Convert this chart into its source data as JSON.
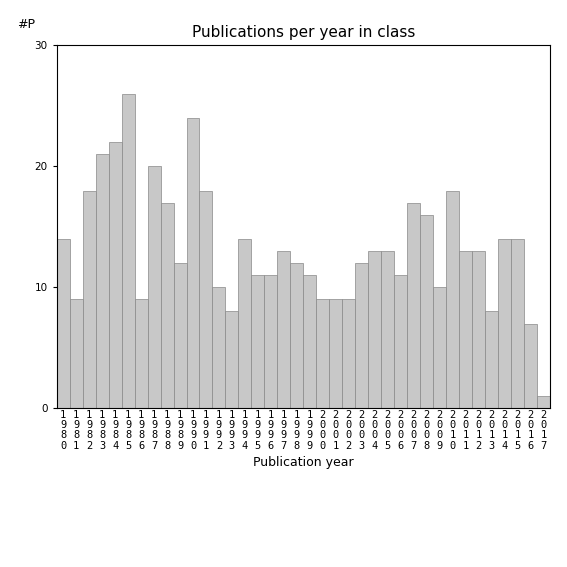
{
  "title": "Publications per year in class",
  "xlabel": "Publication year",
  "ylabel_text": "#P",
  "years": [
    1980,
    1981,
    1982,
    1983,
    1984,
    1985,
    1986,
    1987,
    1988,
    1989,
    1990,
    1991,
    1992,
    1993,
    1994,
    1995,
    1996,
    1997,
    1998,
    1999,
    2000,
    2001,
    2002,
    2003,
    2004,
    2005,
    2006,
    2007,
    2008,
    2009,
    2010,
    2011,
    2012,
    2013,
    2014,
    2015,
    2016,
    2017
  ],
  "values": [
    14,
    9,
    18,
    21,
    22,
    26,
    9,
    20,
    17,
    12,
    24,
    18,
    10,
    8,
    14,
    11,
    11,
    13,
    12,
    11,
    9,
    9,
    9,
    12,
    13,
    13,
    11,
    17,
    16,
    10,
    18,
    13,
    13,
    8,
    14,
    14,
    7,
    1
  ],
  "bar_color": "#c8c8c8",
  "bar_edgecolor": "#888888",
  "ylim": [
    0,
    30
  ],
  "yticks": [
    0,
    10,
    20,
    30
  ],
  "background_color": "#ffffff",
  "title_fontsize": 11,
  "label_fontsize": 9,
  "tick_fontsize": 7.5
}
